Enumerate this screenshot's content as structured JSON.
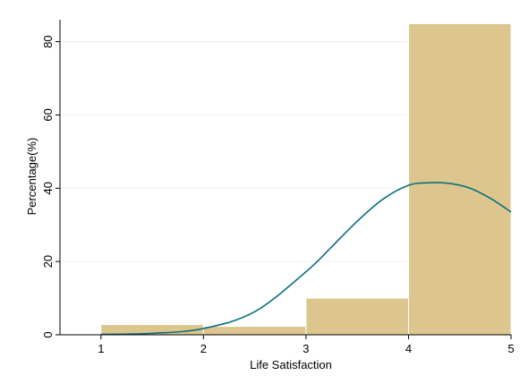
{
  "chart_data": {
    "type": "bar",
    "subtype": "histogram_with_density",
    "xlabel": "Life Satisfaction",
    "ylabel": "Percentage(%)",
    "xlim": [
      0.6,
      5.0
    ],
    "ylim": [
      0,
      86
    ],
    "x_ticks": [
      "1",
      "2",
      "3",
      "4",
      "5"
    ],
    "y_ticks": [
      "0",
      "20",
      "40",
      "60",
      "80"
    ],
    "grid": true,
    "legend": "none",
    "bins": [
      {
        "from": 1,
        "to": 2,
        "value": 2.8
      },
      {
        "from": 2,
        "to": 3,
        "value": 2.3
      },
      {
        "from": 3,
        "to": 4,
        "value": 10.0
      },
      {
        "from": 4,
        "to": 5,
        "value": 84.9
      }
    ],
    "density_curve": {
      "x": [
        1.0,
        1.5,
        2.0,
        2.5,
        3.0,
        3.25,
        3.5,
        3.75,
        4.0,
        4.2,
        4.4,
        4.6,
        4.8,
        5.0
      ],
      "y": [
        0.1,
        0.4,
        1.7,
        6.3,
        17.2,
        24.0,
        31.0,
        37.0,
        40.8,
        41.5,
        41.3,
        40.0,
        37.2,
        33.5
      ]
    },
    "colors": {
      "bar_fill": "#dcc68e",
      "bar_stroke": "#ffffff",
      "curve": "#0e6e80",
      "grid": "#eeeeee",
      "axis": "#000000"
    }
  }
}
